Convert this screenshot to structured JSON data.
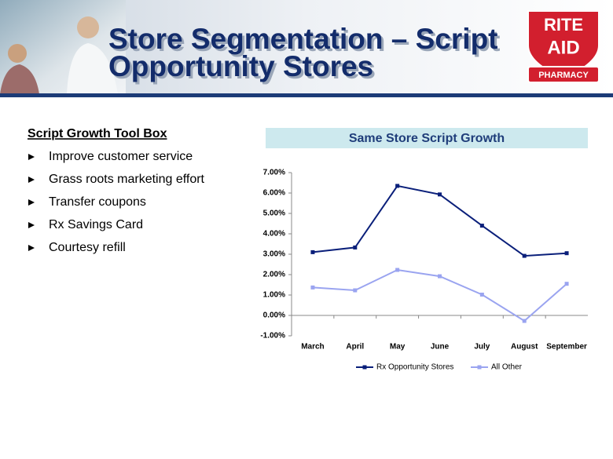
{
  "header": {
    "title_lines": [
      "Store Segmentation – Script",
      "Opportunity Stores"
    ],
    "logo": [
      "RITE",
      "AID",
      "PHARMACY"
    ]
  },
  "toolbox": {
    "heading": "Script Growth Tool Box",
    "items": [
      "Improve customer service",
      "Grass roots marketing effort",
      "Transfer coupons",
      "Rx Savings Card",
      "Courtesy refill"
    ]
  },
  "chart_data": {
    "type": "line",
    "title": "Same Store Script Growth",
    "categories": [
      "March",
      "April",
      "May",
      "June",
      "July",
      "August",
      "September"
    ],
    "series": [
      {
        "name": "Rx Opportunity Stores",
        "color": "#0a1f7a",
        "values": [
          3.1,
          3.33,
          6.35,
          5.93,
          4.4,
          2.92,
          3.05
        ]
      },
      {
        "name": "All Other",
        "color": "#9aa4f0",
        "values": [
          1.37,
          1.23,
          2.23,
          1.92,
          1.02,
          -0.27,
          1.55
        ]
      }
    ],
    "ylim": [
      -1,
      7
    ],
    "yticks": [
      {
        "value": -1,
        "label": "-1.00%"
      },
      {
        "value": 0,
        "label": "0.00%"
      },
      {
        "value": 1,
        "label": "1.00%"
      },
      {
        "value": 2,
        "label": "2.00%"
      },
      {
        "value": 3,
        "label": "3.00%"
      },
      {
        "value": 4,
        "label": "4.00%"
      },
      {
        "value": 5,
        "label": "5.00%"
      },
      {
        "value": 6,
        "label": "6.00%"
      },
      {
        "value": 7,
        "label": "7.00%"
      }
    ],
    "legend": "bottom"
  }
}
